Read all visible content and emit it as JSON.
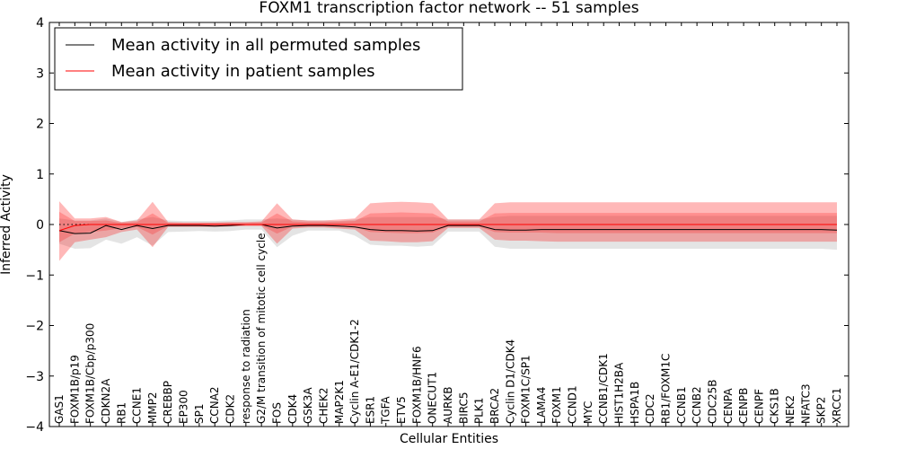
{
  "chart_data": {
    "type": "line",
    "title": "FOXM1 transcription factor network -- 51 samples",
    "xlabel": "Cellular Entities",
    "ylabel": "Inferred Activity",
    "ylim": [
      -4,
      4
    ],
    "yticks": [
      -4,
      -3,
      -2,
      -1,
      0,
      1,
      2,
      3,
      4
    ],
    "ytick_labels": [
      "−4",
      "−3",
      "−2",
      "−1",
      "0",
      "1",
      "2",
      "3",
      "4"
    ],
    "reference_line": 0.0,
    "legend_position": "top-left",
    "categories": [
      "GAS1",
      "FOXM1B/p19",
      "FOXM1B/Cbp/p300",
      "CDKN2A",
      "RB1",
      "CCNE1",
      "MMP2",
      "CREBBP",
      "EP300",
      "SP1",
      "CCNA2",
      "CDK2",
      "response to radiation",
      "G2/M transition of mitotic cell cycle",
      "FOS",
      "CDK4",
      "GSK3A",
      "CHEK2",
      "MAP2K1",
      "Cyclin A-E1/CDK1-2",
      "ESR1",
      "TGFA",
      "ETV5",
      "FOXM1B/HNF6",
      "ONECUT1",
      "AURKB",
      "BIRC5",
      "PLK1",
      "BRCA2",
      "Cyclin D1/CDK4",
      "FOXM1C/SP1",
      "LAMA4",
      "FOXM1",
      "CCND1",
      "MYC",
      "CCNB1/CDK1",
      "HIST1H2BA",
      "HSPA1B",
      "CDC2",
      "RB1/FOXM1C",
      "CCNB1",
      "CCNB2",
      "CDC25B",
      "CENPA",
      "CENPB",
      "CENPF",
      "CKS1B",
      "NEK2",
      "NFATC3",
      "SKP2",
      "XRCC1"
    ],
    "series": [
      {
        "name": "Mean activity in all permuted samples",
        "color": "#000000",
        "values": [
          -0.12,
          -0.18,
          -0.17,
          -0.02,
          -0.1,
          -0.02,
          -0.08,
          -0.02,
          -0.02,
          -0.02,
          -0.03,
          -0.02,
          0.0,
          0.0,
          -0.07,
          -0.03,
          -0.02,
          -0.02,
          -0.03,
          -0.05,
          -0.1,
          -0.12,
          -0.12,
          -0.13,
          -0.12,
          -0.02,
          -0.02,
          -0.02,
          -0.1,
          -0.11,
          -0.11,
          -0.1,
          -0.1,
          -0.1,
          -0.1,
          -0.1,
          -0.1,
          -0.1,
          -0.1,
          -0.1,
          -0.1,
          -0.1,
          -0.1,
          -0.1,
          -0.1,
          -0.1,
          -0.1,
          -0.1,
          -0.1,
          -0.1,
          -0.11
        ],
        "band_lower": [
          -0.38,
          -0.48,
          -0.47,
          -0.3,
          -0.38,
          -0.25,
          -0.42,
          -0.15,
          -0.14,
          -0.13,
          -0.14,
          -0.13,
          -0.1,
          -0.1,
          -0.45,
          -0.22,
          -0.12,
          -0.12,
          -0.12,
          -0.22,
          -0.4,
          -0.42,
          -0.42,
          -0.44,
          -0.42,
          -0.14,
          -0.14,
          -0.14,
          -0.44,
          -0.48,
          -0.48,
          -0.48,
          -0.48,
          -0.48,
          -0.48,
          -0.48,
          -0.48,
          -0.48,
          -0.48,
          -0.48,
          -0.48,
          -0.48,
          -0.48,
          -0.48,
          -0.48,
          -0.48,
          -0.48,
          -0.48,
          -0.48,
          -0.48,
          -0.5
        ],
        "band_upper": [
          0.12,
          0.08,
          0.08,
          0.12,
          0.05,
          0.1,
          0.15,
          0.08,
          0.07,
          0.07,
          0.07,
          0.08,
          0.1,
          0.1,
          0.12,
          0.1,
          0.08,
          0.08,
          0.07,
          0.1,
          0.15,
          0.15,
          0.15,
          0.15,
          0.15,
          0.1,
          0.1,
          0.1,
          0.15,
          0.17,
          0.17,
          0.17,
          0.17,
          0.17,
          0.17,
          0.17,
          0.17,
          0.17,
          0.17,
          0.17,
          0.17,
          0.17,
          0.17,
          0.17,
          0.17,
          0.17,
          0.17,
          0.17,
          0.17,
          0.17,
          0.17
        ]
      },
      {
        "name": "Mean activity in patient samples",
        "color": "#ff0000",
        "values": [
          -0.12,
          -0.02,
          0.0,
          0.0,
          0.0,
          0.0,
          0.0,
          0.0,
          0.0,
          0.0,
          0.0,
          0.0,
          0.0,
          0.0,
          0.0,
          0.0,
          0.0,
          0.0,
          0.0,
          0.0,
          0.0,
          0.0,
          0.0,
          0.0,
          0.0,
          0.0,
          0.0,
          0.0,
          0.0,
          0.0,
          0.0,
          0.0,
          0.0,
          0.0,
          0.0,
          0.0,
          0.0,
          0.0,
          0.0,
          0.0,
          0.0,
          0.0,
          0.0,
          0.0,
          0.0,
          0.0,
          0.0,
          0.0,
          0.0,
          0.0,
          0.0
        ],
        "band_outer_lower": [
          -0.72,
          -0.35,
          -0.3,
          -0.25,
          -0.15,
          -0.1,
          -0.45,
          -0.05,
          -0.05,
          -0.05,
          -0.05,
          -0.04,
          -0.03,
          -0.03,
          -0.38,
          -0.08,
          -0.06,
          -0.06,
          -0.08,
          -0.1,
          -0.32,
          -0.33,
          -0.35,
          -0.35,
          -0.33,
          -0.07,
          -0.07,
          -0.07,
          -0.3,
          -0.32,
          -0.32,
          -0.33,
          -0.34,
          -0.34,
          -0.34,
          -0.34,
          -0.34,
          -0.34,
          -0.34,
          -0.34,
          -0.34,
          -0.34,
          -0.34,
          -0.34,
          -0.34,
          -0.34,
          -0.34,
          -0.34,
          -0.34,
          -0.34,
          -0.34
        ],
        "band_outer_upper": [
          0.46,
          0.12,
          0.12,
          0.15,
          0.05,
          0.08,
          0.45,
          0.05,
          0.04,
          0.04,
          0.04,
          0.05,
          0.05,
          0.06,
          0.42,
          0.1,
          0.08,
          0.08,
          0.1,
          0.12,
          0.42,
          0.44,
          0.45,
          0.44,
          0.42,
          0.1,
          0.1,
          0.1,
          0.42,
          0.44,
          0.44,
          0.44,
          0.44,
          0.44,
          0.44,
          0.44,
          0.44,
          0.44,
          0.44,
          0.44,
          0.44,
          0.44,
          0.44,
          0.44,
          0.44,
          0.44,
          0.44,
          0.44,
          0.44,
          0.44,
          0.44
        ],
        "band_inner_lower": [
          -0.35,
          -0.18,
          -0.15,
          -0.12,
          -0.07,
          -0.05,
          -0.2,
          -0.03,
          -0.03,
          -0.03,
          -0.03,
          -0.02,
          -0.02,
          -0.02,
          -0.18,
          -0.04,
          -0.03,
          -0.03,
          -0.04,
          -0.05,
          -0.15,
          -0.16,
          -0.17,
          -0.17,
          -0.16,
          -0.04,
          -0.04,
          -0.04,
          -0.15,
          -0.16,
          -0.16,
          -0.16,
          -0.17,
          -0.17,
          -0.17,
          -0.17,
          -0.17,
          -0.17,
          -0.17,
          -0.17,
          -0.17,
          -0.17,
          -0.17,
          -0.17,
          -0.17,
          -0.17,
          -0.17,
          -0.17,
          -0.17,
          -0.17,
          -0.17
        ],
        "band_inner_upper": [
          0.25,
          0.07,
          0.07,
          0.08,
          0.03,
          0.05,
          0.22,
          0.03,
          0.03,
          0.03,
          0.03,
          0.03,
          0.03,
          0.04,
          0.22,
          0.06,
          0.05,
          0.05,
          0.06,
          0.07,
          0.22,
          0.23,
          0.24,
          0.23,
          0.22,
          0.06,
          0.06,
          0.06,
          0.22,
          0.23,
          0.23,
          0.23,
          0.23,
          0.23,
          0.23,
          0.23,
          0.23,
          0.23,
          0.23,
          0.23,
          0.23,
          0.23,
          0.23,
          0.23,
          0.23,
          0.23,
          0.23,
          0.23,
          0.23,
          0.23,
          0.23
        ]
      }
    ]
  }
}
